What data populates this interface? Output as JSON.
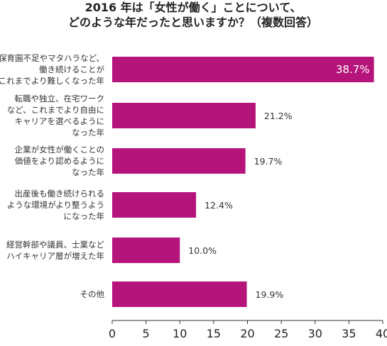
{
  "chart_data": {
    "type": "bar",
    "orientation": "horizontal",
    "title_lines": [
      "2016 年は「女性が働く」ことについて、",
      "どのような年だったと思いますか？（複数回答）"
    ],
    "categories": [
      [
        "保育園不足やマタハラなど、",
        "働き続けることが",
        "これまでより難しくなった年"
      ],
      [
        "転職や独立、在宅ワーク",
        "など、これまでより自由に",
        "キャリアを選べるように",
        "なった年"
      ],
      [
        "企業が女性が働くことの",
        "価値をより認めるように",
        "なった年"
      ],
      [
        "出産後も働き続けられる",
        "ような環境がより整うよう",
        "になった年"
      ],
      [
        "経営幹部や議員、士業など",
        "ハイキャリア層が増えた年"
      ],
      [
        "その他"
      ]
    ],
    "values": [
      38.7,
      21.2,
      19.7,
      12.4,
      10.0,
      19.9
    ],
    "value_labels": [
      "38.7%",
      "21.2%",
      "19.7%",
      "12.4%",
      "10.0%",
      "19.9%"
    ],
    "x_ticks": [
      "0",
      "5",
      "10",
      "15",
      "20",
      "25",
      "30",
      "35",
      "40"
    ],
    "xlim": [
      0,
      40
    ],
    "bar_color": "#b5147a",
    "grid": false,
    "legend": "none"
  }
}
